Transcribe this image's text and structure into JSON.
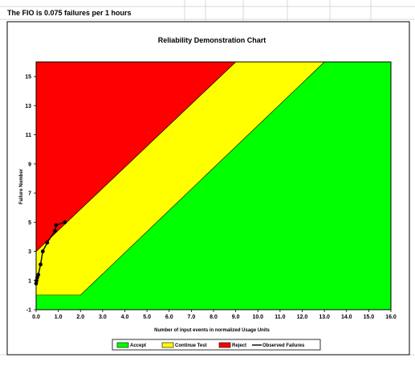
{
  "header": {
    "text": "The FIO is 0.075 failures per 1 hours"
  },
  "chart_data": {
    "type": "area",
    "title": "Reliability Demonstration Chart",
    "xlabel": "Number of input events in normalized Usage Units",
    "ylabel": "Failure Number",
    "xlim": [
      0,
      16
    ],
    "ylim": [
      -1,
      16
    ],
    "x_ticks": [
      "0.0",
      "1.0",
      "2.0",
      "3.0",
      "4.0",
      "5.0",
      "6.0",
      "7.0",
      "8.0",
      "9.0",
      "10.0",
      "11.0",
      "12.0",
      "13.0",
      "14.0",
      "15.0",
      "16.0"
    ],
    "y_ticks": [
      "-1",
      "1",
      "3",
      "5",
      "7",
      "9",
      "11",
      "13",
      "15"
    ],
    "regions": [
      {
        "name": "Accept",
        "color": "#00ff00"
      },
      {
        "name": "Continue Test",
        "color": "#ffff00"
      },
      {
        "name": "Reject",
        "color": "#ff0000"
      }
    ],
    "reject_boundary": {
      "x": [
        0,
        9
      ],
      "y": [
        3,
        16
      ]
    },
    "accept_boundary": {
      "x": [
        0,
        2,
        13
      ],
      "y": [
        0,
        0,
        16
      ]
    },
    "observed_failures": {
      "name": "Observed Failures",
      "color": "#000000",
      "x": [
        0.0,
        0.02,
        0.05,
        0.1,
        0.2,
        0.3,
        0.5,
        0.85,
        0.9,
        1.3
      ],
      "y": [
        0.8,
        1.0,
        1.2,
        1.4,
        2.1,
        3.0,
        3.6,
        4.4,
        4.8,
        5.0
      ]
    },
    "legend": {
      "position": "bottom",
      "items": [
        {
          "label": "Accept",
          "kind": "box",
          "color": "#00ff00"
        },
        {
          "label": "Continue Test",
          "kind": "box",
          "color": "#ffff00"
        },
        {
          "label": "Reject",
          "kind": "box",
          "color": "#ff0000"
        },
        {
          "label": "Observed Failures",
          "kind": "line",
          "color": "#000000"
        }
      ]
    }
  }
}
